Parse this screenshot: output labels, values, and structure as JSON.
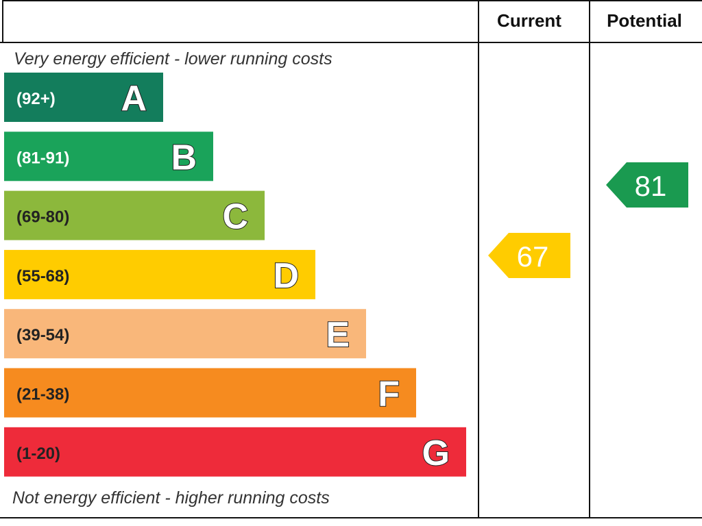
{
  "header": {
    "current": "Current",
    "potential": "Potential"
  },
  "top_note": "Very energy efficient - lower running costs",
  "bottom_note": "Not energy efficient - higher running costs",
  "bands": [
    {
      "range": "(92+)",
      "letter": "A"
    },
    {
      "range": "(81-91)",
      "letter": "B"
    },
    {
      "range": "(69-80)",
      "letter": "C"
    },
    {
      "range": "(55-68)",
      "letter": "D"
    },
    {
      "range": "(39-54)",
      "letter": "E"
    },
    {
      "range": "(21-38)",
      "letter": "F"
    },
    {
      "range": "(1-20)",
      "letter": "G"
    }
  ],
  "ratings": {
    "current": 67,
    "potential": 81
  }
}
